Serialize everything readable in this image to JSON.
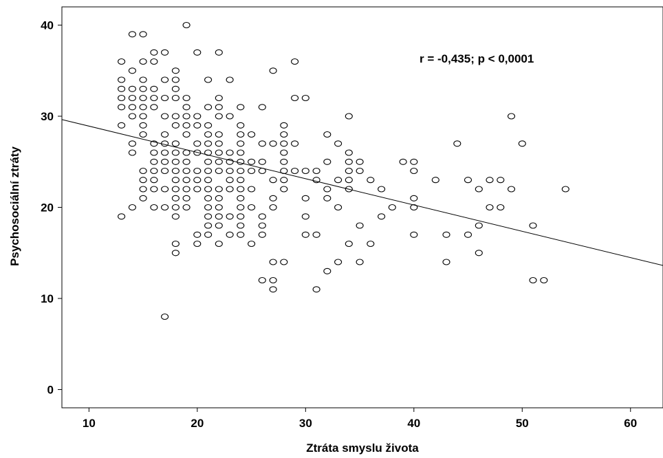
{
  "chart_data": {
    "type": "scatter",
    "xlabel": "Ztráta smyslu života",
    "ylabel": "Psychosociální ztráty",
    "annotation": "r = -0,435; p < 0,0001",
    "xlim": [
      7.5,
      63
    ],
    "ylim": [
      -2,
      42
    ],
    "xticks": [
      10,
      20,
      30,
      40,
      50,
      60
    ],
    "yticks": [
      0,
      10,
      20,
      30,
      40
    ],
    "grid": false,
    "marker": "open-circle",
    "fit_line": {
      "type": "linear",
      "slope": -0.2886,
      "intercept": 31.8
    },
    "points": [
      [
        14,
        39
      ],
      [
        15,
        39
      ],
      [
        19,
        40
      ],
      [
        13,
        36
      ],
      [
        16,
        37
      ],
      [
        17,
        37
      ],
      [
        20,
        37
      ],
      [
        22,
        37
      ],
      [
        15,
        36
      ],
      [
        16,
        36
      ],
      [
        29,
        36
      ],
      [
        14,
        35
      ],
      [
        18,
        35
      ],
      [
        27,
        35
      ],
      [
        13,
        34
      ],
      [
        15,
        34
      ],
      [
        17,
        34
      ],
      [
        18,
        34
      ],
      [
        21,
        34
      ],
      [
        23,
        34
      ],
      [
        13,
        33
      ],
      [
        14,
        33
      ],
      [
        15,
        33
      ],
      [
        16,
        33
      ],
      [
        18,
        33
      ],
      [
        13,
        32
      ],
      [
        14,
        32
      ],
      [
        15,
        32
      ],
      [
        16,
        32
      ],
      [
        17,
        32
      ],
      [
        18,
        32
      ],
      [
        19,
        32
      ],
      [
        22,
        32
      ],
      [
        29,
        32
      ],
      [
        30,
        32
      ],
      [
        13,
        31
      ],
      [
        14,
        31
      ],
      [
        15,
        31
      ],
      [
        16,
        31
      ],
      [
        19,
        31
      ],
      [
        21,
        31
      ],
      [
        22,
        31
      ],
      [
        24,
        31
      ],
      [
        26,
        31
      ],
      [
        14,
        30
      ],
      [
        15,
        30
      ],
      [
        17,
        30
      ],
      [
        18,
        30
      ],
      [
        19,
        30
      ],
      [
        20,
        30
      ],
      [
        22,
        30
      ],
      [
        23,
        30
      ],
      [
        34,
        30
      ],
      [
        49,
        30
      ],
      [
        13,
        29
      ],
      [
        15,
        29
      ],
      [
        18,
        29
      ],
      [
        19,
        29
      ],
      [
        20,
        29
      ],
      [
        21,
        29
      ],
      [
        24,
        29
      ],
      [
        28,
        29
      ],
      [
        15,
        28
      ],
      [
        17,
        28
      ],
      [
        19,
        28
      ],
      [
        21,
        28
      ],
      [
        22,
        28
      ],
      [
        24,
        28
      ],
      [
        25,
        28
      ],
      [
        28,
        28
      ],
      [
        32,
        28
      ],
      [
        14,
        27
      ],
      [
        16,
        27
      ],
      [
        17,
        27
      ],
      [
        18,
        27
      ],
      [
        20,
        27
      ],
      [
        21,
        27
      ],
      [
        22,
        27
      ],
      [
        24,
        27
      ],
      [
        26,
        27
      ],
      [
        27,
        27
      ],
      [
        28,
        27
      ],
      [
        29,
        27
      ],
      [
        33,
        27
      ],
      [
        44,
        27
      ],
      [
        50,
        27
      ],
      [
        14,
        26
      ],
      [
        16,
        26
      ],
      [
        17,
        26
      ],
      [
        18,
        26
      ],
      [
        19,
        26
      ],
      [
        20,
        26
      ],
      [
        21,
        26
      ],
      [
        22,
        26
      ],
      [
        23,
        26
      ],
      [
        24,
        26
      ],
      [
        28,
        26
      ],
      [
        34,
        26
      ],
      [
        16,
        25
      ],
      [
        17,
        25
      ],
      [
        18,
        25
      ],
      [
        19,
        25
      ],
      [
        21,
        25
      ],
      [
        22,
        25
      ],
      [
        23,
        25
      ],
      [
        24,
        25
      ],
      [
        25,
        25
      ],
      [
        26,
        25
      ],
      [
        28,
        25
      ],
      [
        32,
        25
      ],
      [
        34,
        25
      ],
      [
        35,
        25
      ],
      [
        39,
        25
      ],
      [
        40,
        25
      ],
      [
        15,
        24
      ],
      [
        16,
        24
      ],
      [
        17,
        24
      ],
      [
        18,
        24
      ],
      [
        19,
        24
      ],
      [
        20,
        24
      ],
      [
        21,
        24
      ],
      [
        22,
        24
      ],
      [
        23,
        24
      ],
      [
        24,
        24
      ],
      [
        25,
        24
      ],
      [
        26,
        24
      ],
      [
        28,
        24
      ],
      [
        29,
        24
      ],
      [
        30,
        24
      ],
      [
        31,
        24
      ],
      [
        34,
        24
      ],
      [
        35,
        24
      ],
      [
        40,
        24
      ],
      [
        15,
        23
      ],
      [
        16,
        23
      ],
      [
        18,
        23
      ],
      [
        19,
        23
      ],
      [
        20,
        23
      ],
      [
        21,
        23
      ],
      [
        23,
        23
      ],
      [
        24,
        23
      ],
      [
        27,
        23
      ],
      [
        28,
        23
      ],
      [
        31,
        23
      ],
      [
        33,
        23
      ],
      [
        34,
        23
      ],
      [
        36,
        23
      ],
      [
        42,
        23
      ],
      [
        45,
        23
      ],
      [
        47,
        23
      ],
      [
        48,
        23
      ],
      [
        15,
        22
      ],
      [
        16,
        22
      ],
      [
        17,
        22
      ],
      [
        18,
        22
      ],
      [
        19,
        22
      ],
      [
        20,
        22
      ],
      [
        21,
        22
      ],
      [
        22,
        22
      ],
      [
        23,
        22
      ],
      [
        24,
        22
      ],
      [
        25,
        22
      ],
      [
        28,
        22
      ],
      [
        32,
        22
      ],
      [
        34,
        22
      ],
      [
        37,
        22
      ],
      [
        46,
        22
      ],
      [
        49,
        22
      ],
      [
        54,
        22
      ],
      [
        15,
        21
      ],
      [
        18,
        21
      ],
      [
        19,
        21
      ],
      [
        21,
        21
      ],
      [
        22,
        21
      ],
      [
        24,
        21
      ],
      [
        27,
        21
      ],
      [
        30,
        21
      ],
      [
        32,
        21
      ],
      [
        40,
        21
      ],
      [
        14,
        20
      ],
      [
        16,
        20
      ],
      [
        17,
        20
      ],
      [
        18,
        20
      ],
      [
        19,
        20
      ],
      [
        21,
        20
      ],
      [
        22,
        20
      ],
      [
        24,
        20
      ],
      [
        25,
        20
      ],
      [
        27,
        20
      ],
      [
        33,
        20
      ],
      [
        38,
        20
      ],
      [
        40,
        20
      ],
      [
        47,
        20
      ],
      [
        48,
        20
      ],
      [
        13,
        19
      ],
      [
        18,
        19
      ],
      [
        21,
        19
      ],
      [
        22,
        19
      ],
      [
        23,
        19
      ],
      [
        24,
        19
      ],
      [
        26,
        19
      ],
      [
        30,
        19
      ],
      [
        37,
        19
      ],
      [
        21,
        18
      ],
      [
        22,
        18
      ],
      [
        24,
        18
      ],
      [
        26,
        18
      ],
      [
        35,
        18
      ],
      [
        46,
        18
      ],
      [
        51,
        18
      ],
      [
        20,
        17
      ],
      [
        21,
        17
      ],
      [
        23,
        17
      ],
      [
        24,
        17
      ],
      [
        26,
        17
      ],
      [
        30,
        17
      ],
      [
        31,
        17
      ],
      [
        40,
        17
      ],
      [
        43,
        17
      ],
      [
        45,
        17
      ],
      [
        18,
        16
      ],
      [
        20,
        16
      ],
      [
        22,
        16
      ],
      [
        25,
        16
      ],
      [
        34,
        16
      ],
      [
        36,
        16
      ],
      [
        18,
        15
      ],
      [
        46,
        15
      ],
      [
        27,
        14
      ],
      [
        28,
        14
      ],
      [
        33,
        14
      ],
      [
        35,
        14
      ],
      [
        43,
        14
      ],
      [
        32,
        13
      ],
      [
        26,
        12
      ],
      [
        27,
        12
      ],
      [
        51,
        12
      ],
      [
        52,
        12
      ],
      [
        27,
        11
      ],
      [
        31,
        11
      ],
      [
        17,
        8
      ]
    ]
  }
}
